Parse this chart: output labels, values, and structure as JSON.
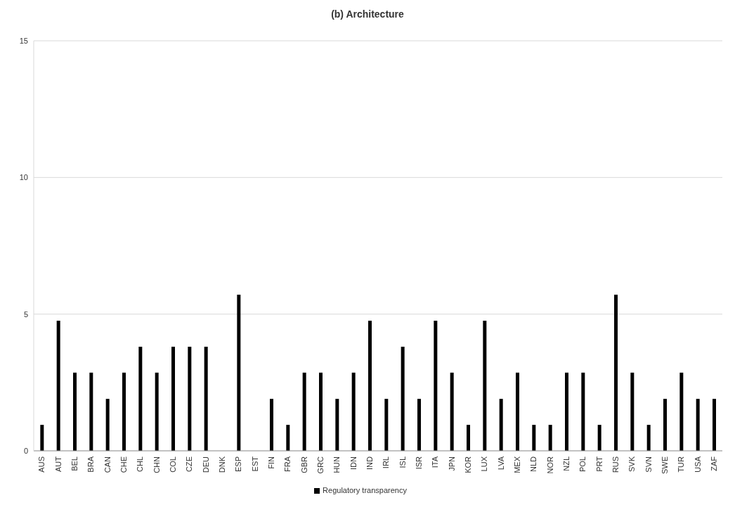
{
  "chart_data": {
    "type": "bar",
    "title": "(b) Architecture",
    "categories": [
      "AUS",
      "AUT",
      "BEL",
      "BRA",
      "CAN",
      "CHE",
      "CHL",
      "CHN",
      "COL",
      "CZE",
      "DEU",
      "DNK",
      "ESP",
      "EST",
      "FIN",
      "FRA",
      "GBR",
      "GRC",
      "HUN",
      "IDN",
      "IND",
      "IRL",
      "ISL",
      "ISR",
      "ITA",
      "JPN",
      "KOR",
      "LUX",
      "LVA",
      "MEX",
      "NLD",
      "NOR",
      "NZL",
      "POL",
      "PRT",
      "RUS",
      "SVK",
      "SVN",
      "SWE",
      "TUR",
      "USA",
      "ZAF"
    ],
    "series": [
      {
        "name": "Regulatory transparency",
        "color": "#000000",
        "values": [
          0.95,
          4.76,
          2.86,
          2.86,
          1.9,
          2.86,
          3.81,
          2.86,
          3.81,
          3.81,
          3.81,
          0,
          5.71,
          0,
          1.9,
          0.95,
          2.86,
          2.86,
          1.9,
          2.86,
          4.76,
          1.9,
          3.81,
          1.9,
          4.76,
          2.86,
          0.95,
          4.76,
          1.9,
          2.86,
          0.95,
          0.95,
          2.86,
          2.86,
          0.95,
          5.71,
          2.86,
          0.95,
          1.9,
          2.86,
          1.9,
          1.9
        ]
      }
    ],
    "ylim": [
      0,
      15
    ],
    "yticks": [
      0,
      5,
      10,
      15
    ],
    "grid": "y",
    "legend": "bottom"
  }
}
